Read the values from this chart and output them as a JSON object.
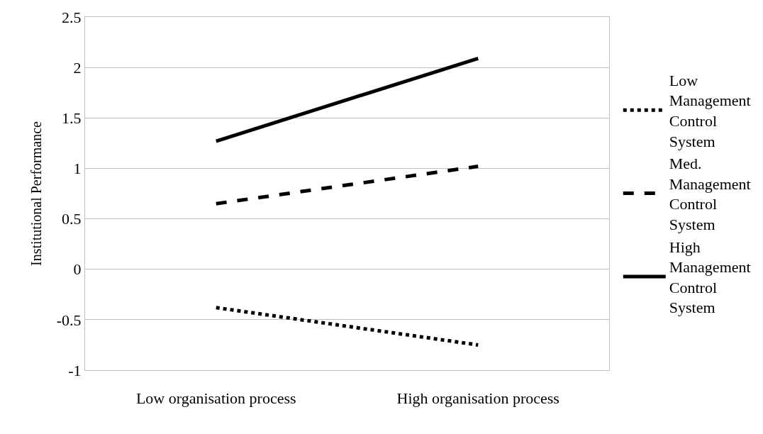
{
  "chart_data": {
    "type": "line",
    "ylabel": "Institutional Performance",
    "categories": [
      "Low organisation process",
      "High organisation process"
    ],
    "series": [
      {
        "name": "Low Management Control System",
        "color": "#000000",
        "line_style": "dotted",
        "values": [
          -0.38,
          -0.75
        ]
      },
      {
        "name": "Med. Management Control System",
        "color": "#000000",
        "line_style": "dashed",
        "values": [
          0.65,
          1.02
        ]
      },
      {
        "name": "High Management Control System",
        "color": "#000000",
        "line_style": "solid",
        "values": [
          1.27,
          2.09
        ]
      }
    ],
    "ylim": [
      -1,
      2.5
    ],
    "yticks": [
      -1,
      -0.5,
      0,
      0.5,
      1,
      1.5,
      2,
      2.5
    ],
    "grid": "y",
    "legend": "right",
    "marker": "none"
  }
}
